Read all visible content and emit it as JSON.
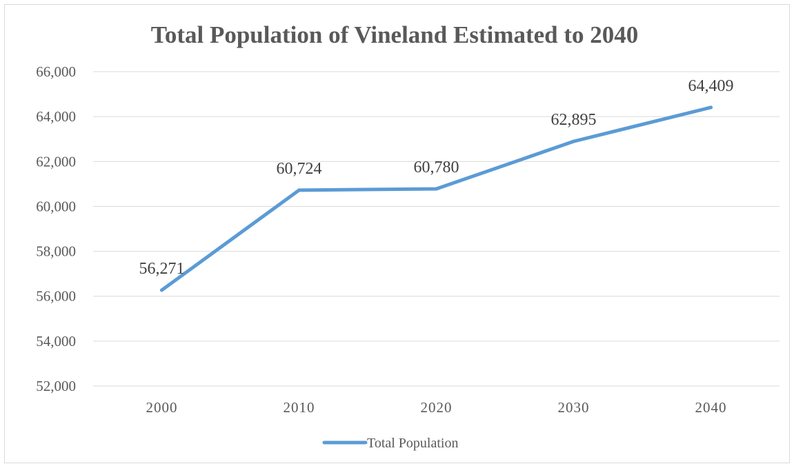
{
  "chart_data": {
    "type": "line",
    "title": "Total Population of Vineland Estimated to 2040",
    "categories": [
      "2000",
      "2010",
      "2020",
      "2030",
      "2040"
    ],
    "series": [
      {
        "name": "Total Population",
        "values": [
          56271,
          60724,
          60780,
          62895,
          64409
        ],
        "labels": [
          "56,271",
          "60,724",
          "60,780",
          "62,895",
          "64,409"
        ],
        "color": "#5b9bd5"
      }
    ],
    "ylim": [
      52000,
      66000
    ],
    "yticks": [
      52000,
      54000,
      56000,
      58000,
      60000,
      62000,
      64000,
      66000
    ],
    "ytick_labels": [
      "52,000",
      "54,000",
      "56,000",
      "58,000",
      "60,000",
      "62,000",
      "64,000",
      "66,000"
    ],
    "grid": true,
    "legend_position": "bottom"
  }
}
